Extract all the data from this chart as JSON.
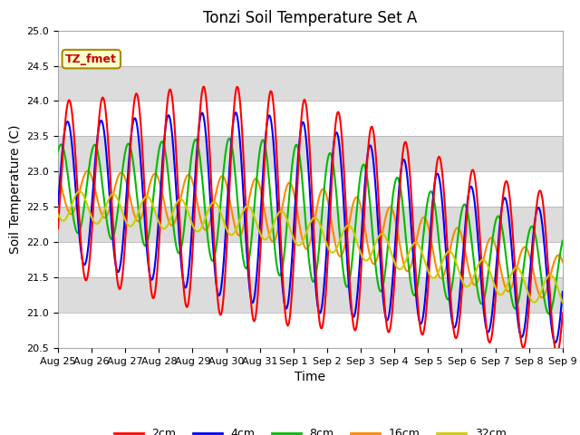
{
  "title": "Tonzi Soil Temperature Set A",
  "xlabel": "Time",
  "ylabel": "Soil Temperature (C)",
  "annotation": "TZ_fmet",
  "ylim": [
    20.5,
    25.0
  ],
  "colors": {
    "2cm": "#FF0000",
    "4cm": "#0000FF",
    "8cm": "#00BB00",
    "16cm": "#FF8800",
    "32cm": "#CCCC00"
  },
  "legend_labels": [
    "2cm",
    "4cm",
    "8cm",
    "16cm",
    "32cm"
  ],
  "x_tick_labels": [
    "Aug 25",
    "Aug 26",
    "Aug 27",
    "Aug 28",
    "Aug 29",
    "Aug 30",
    "Aug 31",
    "Sep 1",
    "Sep 2",
    "Sep 3",
    "Sep 4",
    "Sep 5",
    "Sep 6",
    "Sep 7",
    "Sep 8",
    "Sep 9"
  ],
  "background_color": "#FFFFFF",
  "plot_bg_color": "#E8E8E8",
  "title_fontsize": 12,
  "axis_label_fontsize": 10,
  "tick_fontsize": 8,
  "legend_fontsize": 9,
  "linewidth": 1.5
}
